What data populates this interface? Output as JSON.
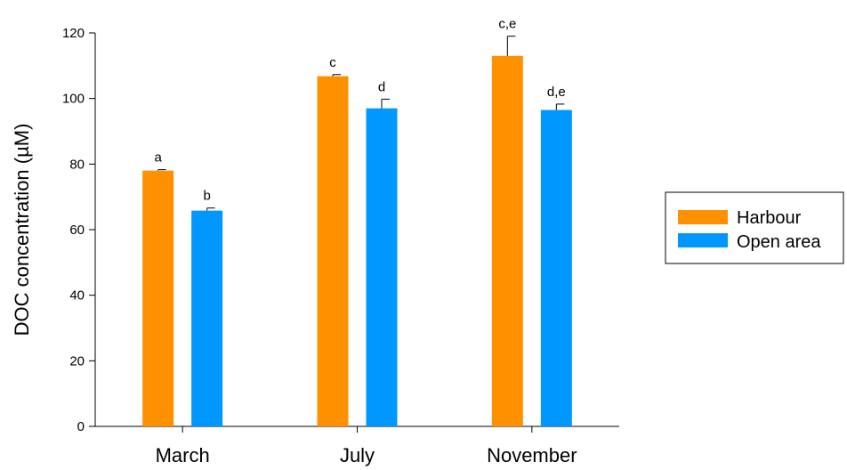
{
  "chart_data": {
    "type": "bar",
    "categories": [
      "March",
      "July",
      "November"
    ],
    "ylabel": "DOC concentration (µM)",
    "ylim": [
      0,
      120
    ],
    "yticks": [
      0,
      20,
      40,
      60,
      80,
      100,
      120
    ],
    "grid": false,
    "legend_position": "right",
    "series": [
      {
        "name": "Harbour",
        "color": "#ff9000",
        "values": [
          78,
          106.8,
          113
        ],
        "errors": [
          0.3,
          0.5,
          6
        ],
        "sig_labels": [
          "a",
          "c",
          "c,e"
        ]
      },
      {
        "name": "Open area",
        "color": "#0097ff",
        "values": [
          65.8,
          97,
          96.5
        ],
        "errors": [
          0.8,
          2.8,
          1.8
        ],
        "sig_labels": [
          "b",
          "d",
          "d,e"
        ]
      }
    ]
  }
}
